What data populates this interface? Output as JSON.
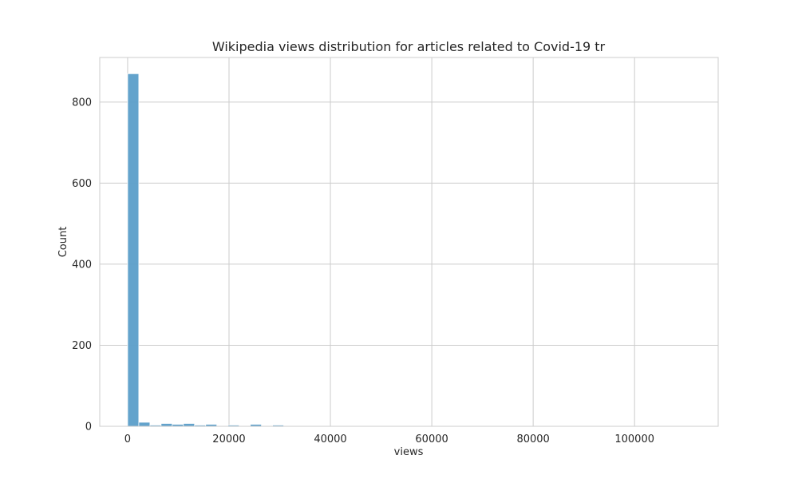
{
  "chart_data": {
    "type": "bar",
    "title": "Wikipedia views distribution for articles related to Covid-19 tr",
    "xlabel": "views",
    "ylabel": "Count",
    "xlim": [
      -5500,
      116500
    ],
    "ylim": [
      0,
      910
    ],
    "xticks": [
      0,
      20000,
      40000,
      60000,
      80000,
      100000
    ],
    "yticks": [
      0,
      200,
      400,
      600,
      800
    ],
    "grid": true,
    "bar_color": "#5b9ec9",
    "bin_start": 0,
    "bin_width": 2200,
    "counts": [
      870,
      10,
      3,
      7,
      5,
      7,
      3,
      5,
      1,
      3,
      1,
      5,
      1,
      3,
      1,
      1,
      1,
      1,
      0,
      1,
      0,
      1,
      0,
      0,
      1,
      0,
      0,
      0,
      0,
      0,
      1,
      0,
      0,
      0,
      0,
      0,
      0,
      1,
      0,
      0,
      0,
      0,
      0,
      0,
      0,
      0,
      0,
      0,
      0,
      1
    ]
  }
}
